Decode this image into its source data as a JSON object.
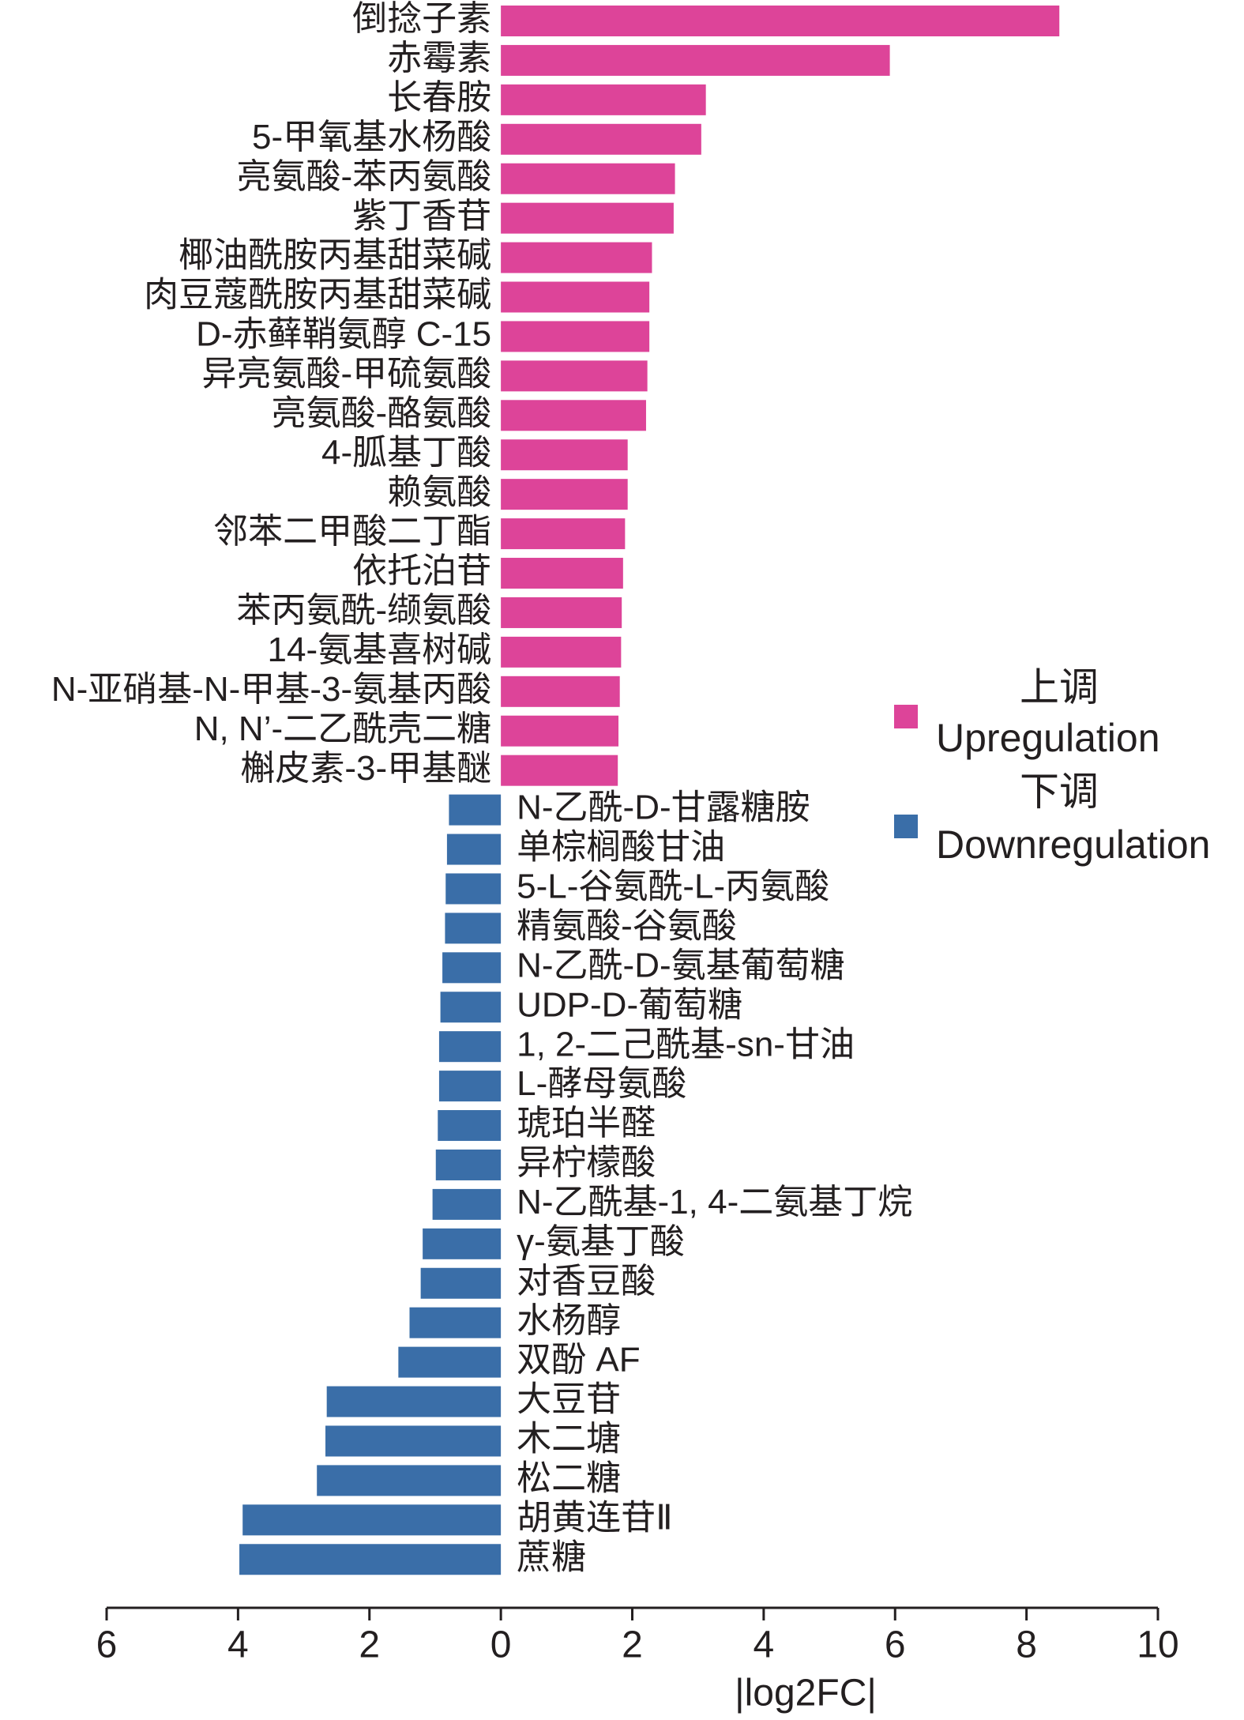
{
  "chart_data": {
    "type": "bar",
    "orientation": "horizontal",
    "x_label": "|log2FC|",
    "xlim": [
      -6,
      10
    ],
    "xticks": [
      {
        "value": -6,
        "label": "6"
      },
      {
        "value": -4,
        "label": "4"
      },
      {
        "value": -2,
        "label": "2"
      },
      0,
      2,
      4,
      6,
      8,
      10
    ],
    "series": [
      {
        "name": "Upregulation",
        "name_zh": "上调",
        "color": "#dd4499",
        "categories": [
          "倒捻子素",
          "赤霉素",
          "长春胺",
          "5-甲氧基水杨酸",
          "亮氨酸-苯丙氨酸",
          "紫丁香苷",
          "椰油酰胺丙基甜菜碱",
          "肉豆蔻酰胺丙基甜菜碱",
          "D-赤藓鞘氨醇 C-15",
          "异亮氨酸-甲硫氨酸",
          "亮氨酸-酪氨酸",
          "4-胍基丁酸",
          "赖氨酸",
          "邻苯二甲酸二丁酯",
          "依托泊苷",
          "苯丙氨酰-缬氨酸",
          "14-氨基喜树碱",
          "N-亚硝基-N-甲基-3-氨基丙酸",
          "N, N’-二乙酰壳二糖",
          "槲皮素-3-甲基醚"
        ],
        "values": [
          8.5,
          5.92,
          3.12,
          3.05,
          2.65,
          2.63,
          2.3,
          2.26,
          2.26,
          2.23,
          2.21,
          1.93,
          1.93,
          1.89,
          1.86,
          1.84,
          1.83,
          1.81,
          1.79,
          1.78
        ]
      },
      {
        "name": "Downregulation",
        "name_zh": "下调",
        "color": "#3a6ea8",
        "categories": [
          "N-乙酰-D-甘露糖胺",
          "单棕榈酸甘油",
          "5-L-谷氨酰-L-丙氨酸",
          "精氨酸-谷氨酸",
          "N-乙酰-D-氨基葡萄糖",
          "UDP-D-葡萄糖",
          "1, 2-二己酰基-sn-甘油",
          "L-酵母氨酸",
          "琥珀半醛",
          "异柠檬酸",
          "N-乙酰基-1, 4-二氨基丁烷",
          "γ-氨基丁酸",
          "对香豆酸",
          "水杨醇",
          "双酚 AF",
          "大豆苷",
          "木二塘",
          "松二糖",
          "胡黄连苷Ⅱ",
          "蔗糖"
        ],
        "values": [
          -0.79,
          -0.82,
          -0.84,
          -0.85,
          -0.89,
          -0.92,
          -0.94,
          -0.94,
          -0.96,
          -0.99,
          -1.04,
          -1.19,
          -1.22,
          -1.39,
          -1.56,
          -2.65,
          -2.67,
          -2.8,
          -3.93,
          -3.98
        ]
      }
    ]
  }
}
